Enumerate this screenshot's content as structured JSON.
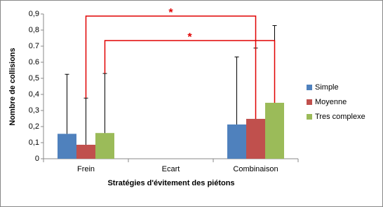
{
  "chart_data": {
    "type": "bar",
    "y_label": "Nombre de collisions",
    "x_label": "Stratégies d'évitement des piétons",
    "categories": [
      "Frein",
      "Ecart",
      "Combinaison"
    ],
    "series": [
      {
        "name": "Simple",
        "color": "#4f81bd",
        "values": [
          0.155,
          null,
          0.213
        ],
        "errors": [
          0.37,
          null,
          0.42
        ]
      },
      {
        "name": "Moyenne",
        "color": "#c0504d",
        "values": [
          0.087,
          null,
          0.248
        ],
        "errors": [
          0.29,
          null,
          0.44
        ]
      },
      {
        "name": "Tres complexe",
        "color": "#9bbb59",
        "values": [
          0.16,
          null,
          0.348
        ],
        "errors": [
          0.37,
          null,
          0.48
        ]
      }
    ],
    "ylim": [
      0,
      0.9
    ],
    "yticks": [
      {
        "value": 0,
        "label": "0"
      },
      {
        "value": 0.1,
        "label": "0,1"
      },
      {
        "value": 0.2,
        "label": "0,2"
      },
      {
        "value": 0.3,
        "label": "0,3"
      },
      {
        "value": 0.4,
        "label": "0,4"
      },
      {
        "value": 0.5,
        "label": "0,5"
      },
      0.6,
      0.7,
      {
        "value": 0.8,
        "label": "0,8"
      },
      {
        "value": 0.9,
        "label": "0,9"
      }
    ],
    "grid": false,
    "legend": "right",
    "annotations": [
      {
        "text": "*",
        "color": "#e00000"
      },
      {
        "text": "*",
        "color": "#e00000"
      }
    ]
  }
}
